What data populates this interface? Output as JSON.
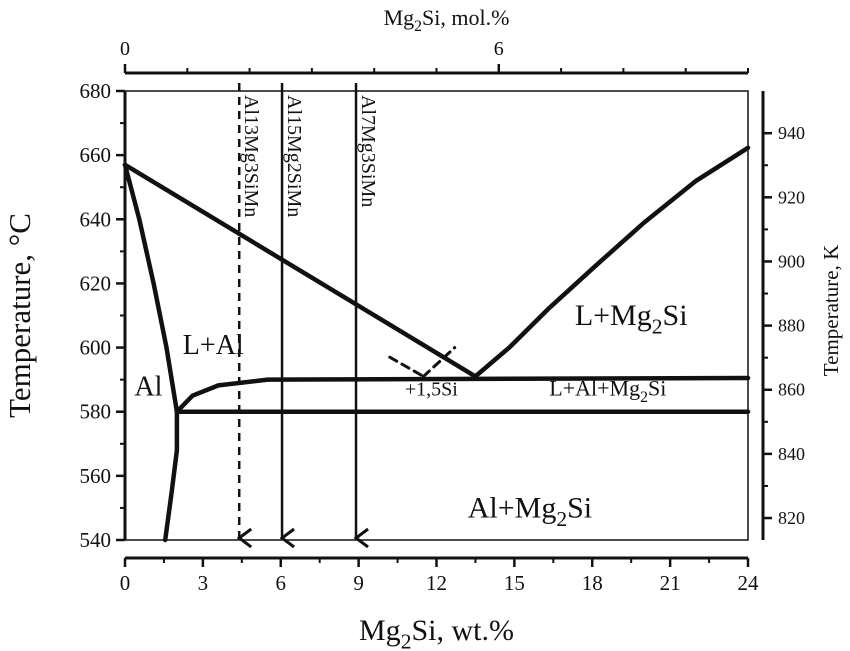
{
  "chart_data": {
    "type": "line",
    "title": "",
    "x_bottom": {
      "label_main": "Mg",
      "label_sub": "2",
      "label_rest": "Si, wt.%",
      "range": [
        0,
        24
      ],
      "ticks": [
        0,
        3,
        6,
        9,
        12,
        15,
        18,
        21,
        24
      ]
    },
    "x_top": {
      "label_main": "Mg",
      "label_sub": "2",
      "label_rest": "Si, mol.%",
      "ticks": [
        {
          "wt": 0,
          "label": "0"
        },
        {
          "wt": 14.4,
          "label": "6"
        }
      ]
    },
    "y_left": {
      "label": "Temperature, °C",
      "range": [
        540,
        680
      ],
      "ticks": [
        540,
        560,
        580,
        600,
        620,
        640,
        660,
        680
      ]
    },
    "y_right": {
      "label": "Temperature, K",
      "ticks": [
        820,
        840,
        860,
        880,
        900,
        920,
        940
      ]
    },
    "grid": false,
    "legend": "none",
    "series": [
      {
        "key": "liquidus_al",
        "points": [
          [
            0,
            657
          ],
          [
            13.5,
            591
          ]
        ]
      },
      {
        "key": "liquidus_mg2si",
        "points": [
          [
            13.5,
            591
          ],
          [
            14.8,
            600
          ],
          [
            16.3,
            612
          ],
          [
            18.2,
            626
          ],
          [
            20,
            639
          ],
          [
            22,
            652
          ],
          [
            24,
            662.3
          ]
        ]
      },
      {
        "key": "solidus_al",
        "points": [
          [
            0,
            657
          ],
          [
            0.55,
            640
          ],
          [
            1.1,
            620
          ],
          [
            1.6,
            600
          ],
          [
            2.0,
            580
          ]
        ]
      },
      {
        "key": "solvus_al",
        "points": [
          [
            2.0,
            580
          ],
          [
            2.0,
            568
          ],
          [
            1.8,
            555
          ],
          [
            1.55,
            540
          ]
        ]
      },
      {
        "key": "L_Al_boundary",
        "points": [
          [
            2.0,
            580
          ],
          [
            2.6,
            585
          ],
          [
            3.6,
            588.2
          ],
          [
            5.5,
            590
          ],
          [
            24,
            590.5
          ]
        ]
      },
      {
        "key": "eutectic",
        "points": [
          [
            2.0,
            580
          ],
          [
            24,
            580
          ]
        ]
      },
      {
        "key": "si_shift",
        "dash": true,
        "points": [
          [
            10.2,
            597
          ],
          [
            11.5,
            591
          ]
        ]
      },
      {
        "key": "si_shift_2",
        "dash": true,
        "points": [
          [
            11.5,
            591
          ],
          [
            12.7,
            600
          ]
        ]
      }
    ],
    "alloy_lines": [
      {
        "name": "Al13Mg3SiMn",
        "x": 4.4,
        "dash": true
      },
      {
        "name": "Al15Mg2SiMn",
        "x": 6.05,
        "dash": false
      },
      {
        "name": "Al7Mg3SiMn",
        "x": 8.9,
        "dash": false
      }
    ],
    "regions": [
      {
        "main": "L+Mg",
        "sub": "2",
        "rest": "Si",
        "x": 19.5,
        "y": 607,
        "size": 30
      },
      {
        "main": "L+Al",
        "sub": "",
        "rest": "",
        "x": 3.4,
        "y": 598,
        "size": 28
      },
      {
        "main": "Al",
        "sub": "",
        "rest": "",
        "x": 0.9,
        "y": 585,
        "size": 28
      },
      {
        "main": "L+Al+Mg",
        "sub": "2",
        "rest": "Si",
        "x": 18.6,
        "y": 585,
        "size": 22
      },
      {
        "main": "+1,5Si",
        "sub": "",
        "rest": "",
        "x": 11.8,
        "y": 585,
        "size": 20
      },
      {
        "main": "Al+Mg",
        "sub": "2",
        "rest": "Si",
        "x": 15.6,
        "y": 547,
        "size": 30
      }
    ]
  }
}
